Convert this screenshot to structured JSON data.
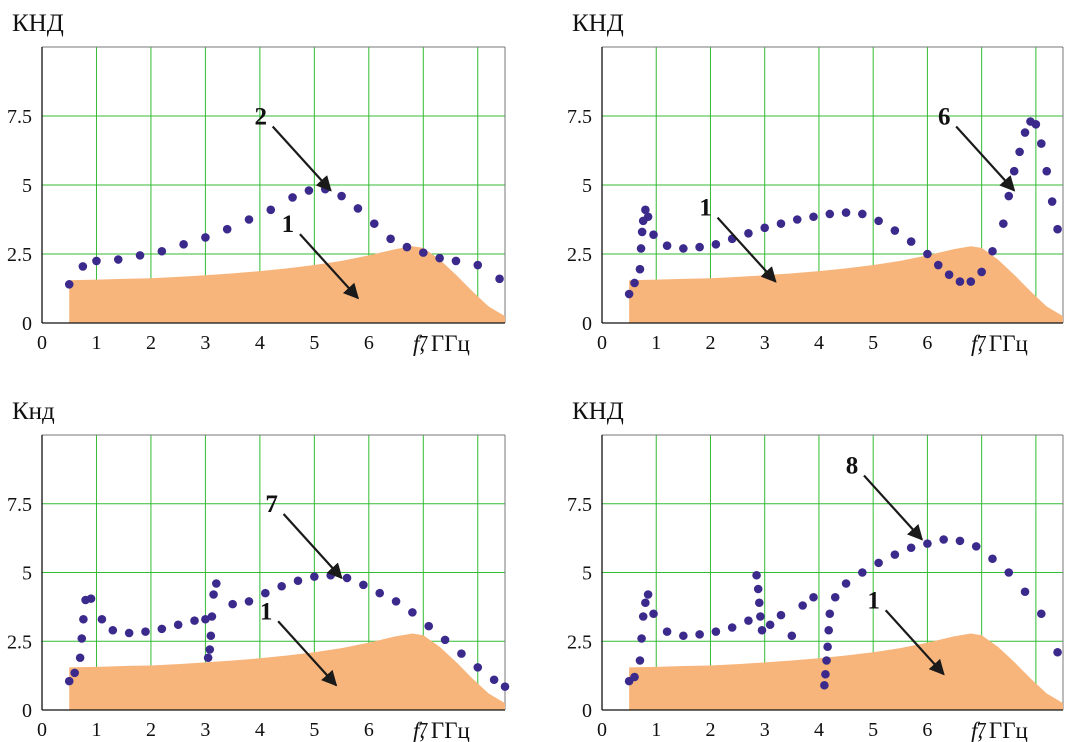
{
  "colors": {
    "area": "#f7b57b",
    "dots": "#3b2a8c",
    "grid": "#33bb33"
  },
  "chart_data": [
    {
      "type": "scatter",
      "ylabel": "КНД",
      "xlabel": "f, ГГц",
      "xlim": [
        0,
        8.5
      ],
      "ylim": [
        0,
        10
      ],
      "xticks": [
        0,
        1,
        2,
        3,
        4,
        5,
        6,
        7
      ],
      "yticks": [
        0,
        2.5,
        5,
        7.5
      ],
      "grid": true,
      "markers": [
        {
          "label": "2",
          "x": 5.3,
          "y": 4.8
        },
        {
          "label": "1",
          "x": 5.8,
          "y": 0.9
        }
      ],
      "series": [
        {
          "type": "area",
          "x": [
            0.5,
            1,
            1.5,
            2,
            2.5,
            3,
            3.5,
            4,
            4.5,
            5,
            5.5,
            6,
            6.5,
            6.8,
            7,
            7.3,
            7.6,
            7.9,
            8.2,
            8.5
          ],
          "values": [
            1.55,
            1.57,
            1.6,
            1.62,
            1.67,
            1.73,
            1.8,
            1.88,
            1.98,
            2.1,
            2.25,
            2.45,
            2.68,
            2.78,
            2.72,
            2.3,
            1.75,
            1.15,
            0.6,
            0.25
          ]
        },
        {
          "type": "scatter",
          "x": [
            0.5,
            0.75,
            1,
            1.4,
            1.8,
            2.2,
            2.6,
            3,
            3.4,
            3.8,
            4.2,
            4.6,
            4.9,
            5.2,
            5.5,
            5.8,
            6.1,
            6.4,
            6.7,
            7,
            7.3,
            7.6,
            8,
            8.4
          ],
          "values": [
            1.4,
            2.05,
            2.25,
            2.3,
            2.45,
            2.6,
            2.85,
            3.1,
            3.4,
            3.75,
            4.1,
            4.55,
            4.8,
            4.85,
            4.6,
            4.15,
            3.6,
            3.05,
            2.75,
            2.55,
            2.35,
            2.25,
            2.1,
            1.6
          ]
        }
      ]
    },
    {
      "type": "scatter",
      "ylabel": "КНД",
      "xlabel": "f, ГГц",
      "xlim": [
        0,
        8.5
      ],
      "ylim": [
        0,
        10
      ],
      "xticks": [
        0,
        1,
        2,
        3,
        4,
        5,
        6,
        7
      ],
      "yticks": [
        0,
        2.5,
        5,
        7.5
      ],
      "grid": true,
      "markers": [
        {
          "label": "1",
          "x": 3.2,
          "y": 1.5
        },
        {
          "label": "6",
          "x": 7.6,
          "y": 4.8
        }
      ],
      "series": [
        {
          "type": "area",
          "x": [
            0.5,
            1,
            1.5,
            2,
            2.5,
            3,
            3.5,
            4,
            4.5,
            5,
            5.5,
            6,
            6.5,
            6.8,
            7,
            7.3,
            7.6,
            7.9,
            8.2,
            8.5
          ],
          "values": [
            1.55,
            1.57,
            1.6,
            1.62,
            1.67,
            1.73,
            1.8,
            1.88,
            1.98,
            2.1,
            2.25,
            2.45,
            2.68,
            2.78,
            2.72,
            2.3,
            1.75,
            1.15,
            0.6,
            0.25
          ]
        },
        {
          "type": "scatter",
          "x": [
            0.5,
            0.6,
            0.7,
            0.72,
            0.74,
            0.76,
            0.8,
            0.85,
            0.95,
            1.2,
            1.5,
            1.8,
            2.1,
            2.4,
            2.7,
            3,
            3.3,
            3.6,
            3.9,
            4.2,
            4.5,
            4.8,
            5.1,
            5.4,
            5.7,
            6,
            6.2,
            6.4,
            6.6,
            6.8,
            7,
            7.2,
            7.4,
            7.5,
            7.6,
            7.7,
            7.8,
            7.9,
            8,
            8.1,
            8.2,
            8.3,
            8.4
          ],
          "values": [
            1.05,
            1.45,
            1.95,
            2.7,
            3.3,
            3.7,
            4.1,
            3.85,
            3.2,
            2.8,
            2.7,
            2.75,
            2.85,
            3.05,
            3.25,
            3.45,
            3.6,
            3.75,
            3.85,
            3.95,
            4,
            3.95,
            3.7,
            3.35,
            2.95,
            2.5,
            2.1,
            1.75,
            1.5,
            1.5,
            1.85,
            2.6,
            3.6,
            4.6,
            5.5,
            6.2,
            6.9,
            7.3,
            7.2,
            6.5,
            5.5,
            4.4,
            3.4
          ]
        }
      ]
    },
    {
      "type": "scatter",
      "ylabel": "Кнд",
      "xlabel": "f, ГГц",
      "xlim": [
        0,
        8.5
      ],
      "ylim": [
        0,
        10
      ],
      "xticks": [
        0,
        1,
        2,
        3,
        4,
        5,
        6,
        7
      ],
      "yticks": [
        0,
        2.5,
        5,
        7.5
      ],
      "grid": true,
      "markers": [
        {
          "label": "7",
          "x": 5.5,
          "y": 4.8
        },
        {
          "label": "1",
          "x": 5.4,
          "y": 0.9
        }
      ],
      "series": [
        {
          "type": "area",
          "x": [
            0.5,
            1,
            1.5,
            2,
            2.5,
            3,
            3.5,
            4,
            4.5,
            5,
            5.5,
            6,
            6.5,
            6.8,
            7,
            7.3,
            7.6,
            7.9,
            8.2,
            8.5
          ],
          "values": [
            1.55,
            1.57,
            1.6,
            1.62,
            1.67,
            1.73,
            1.8,
            1.88,
            1.98,
            2.1,
            2.25,
            2.45,
            2.68,
            2.78,
            2.72,
            2.3,
            1.75,
            1.15,
            0.6,
            0.25
          ]
        },
        {
          "type": "scatter",
          "x": [
            0.5,
            0.6,
            0.7,
            0.73,
            0.76,
            0.8,
            0.9,
            1.1,
            1.3,
            1.6,
            1.9,
            2.2,
            2.5,
            2.8,
            3,
            3.05,
            3.08,
            3.1,
            3.12,
            3.15,
            3.2,
            3.5,
            3.8,
            4.1,
            4.4,
            4.7,
            5,
            5.3,
            5.6,
            5.9,
            6.2,
            6.5,
            6.8,
            7.1,
            7.4,
            7.7,
            8,
            8.3,
            8.5
          ],
          "values": [
            1.05,
            1.35,
            1.9,
            2.6,
            3.3,
            4.0,
            4.05,
            3.3,
            2.9,
            2.8,
            2.85,
            2.95,
            3.1,
            3.25,
            3.3,
            1.9,
            2.2,
            2.7,
            3.4,
            4.2,
            4.6,
            3.85,
            3.95,
            4.25,
            4.5,
            4.7,
            4.85,
            4.9,
            4.8,
            4.55,
            4.25,
            3.95,
            3.55,
            3.05,
            2.55,
            2.05,
            1.55,
            1.1,
            0.85
          ]
        }
      ]
    },
    {
      "type": "scatter",
      "ylabel": "КНД",
      "xlabel": "f, ГГц",
      "xlim": [
        0,
        8.5
      ],
      "ylim": [
        0,
        10
      ],
      "xticks": [
        0,
        1,
        2,
        3,
        4,
        5,
        6,
        7
      ],
      "yticks": [
        0,
        2.5,
        5,
        7.5
      ],
      "grid": true,
      "markers": [
        {
          "label": "8",
          "x": 5.9,
          "y": 6.2
        },
        {
          "label": "1",
          "x": 6.3,
          "y": 1.3
        }
      ],
      "series": [
        {
          "type": "area",
          "x": [
            0.5,
            1,
            1.5,
            2,
            2.5,
            3,
            3.5,
            4,
            4.5,
            5,
            5.5,
            6,
            6.5,
            6.8,
            7,
            7.3,
            7.6,
            7.9,
            8.2,
            8.5
          ],
          "values": [
            1.55,
            1.57,
            1.6,
            1.62,
            1.67,
            1.73,
            1.8,
            1.88,
            1.98,
            2.1,
            2.25,
            2.45,
            2.68,
            2.78,
            2.72,
            2.3,
            1.75,
            1.15,
            0.6,
            0.25
          ]
        },
        {
          "type": "scatter",
          "x": [
            0.5,
            0.6,
            0.7,
            0.73,
            0.76,
            0.8,
            0.85,
            0.95,
            1.2,
            1.5,
            1.8,
            2.1,
            2.4,
            2.7,
            2.85,
            2.88,
            2.9,
            2.92,
            2.95,
            3.1,
            3.3,
            3.5,
            3.7,
            3.9,
            4.1,
            4.12,
            4.14,
            4.16,
            4.18,
            4.2,
            4.3,
            4.5,
            4.8,
            5.1,
            5.4,
            5.7,
            6,
            6.3,
            6.6,
            6.9,
            7.2,
            7.5,
            7.8,
            8.1,
            8.4
          ],
          "values": [
            1.05,
            1.2,
            1.8,
            2.6,
            3.4,
            3.9,
            4.2,
            3.5,
            2.85,
            2.7,
            2.75,
            2.85,
            3.0,
            3.25,
            4.9,
            4.4,
            3.9,
            3.4,
            2.9,
            3.1,
            3.45,
            2.7,
            3.8,
            4.1,
            0.9,
            1.3,
            1.8,
            2.3,
            2.9,
            3.5,
            4.1,
            4.6,
            5.0,
            5.35,
            5.65,
            5.9,
            6.05,
            6.2,
            6.15,
            5.95,
            5.5,
            5.0,
            4.3,
            3.5,
            2.1
          ]
        }
      ]
    }
  ]
}
